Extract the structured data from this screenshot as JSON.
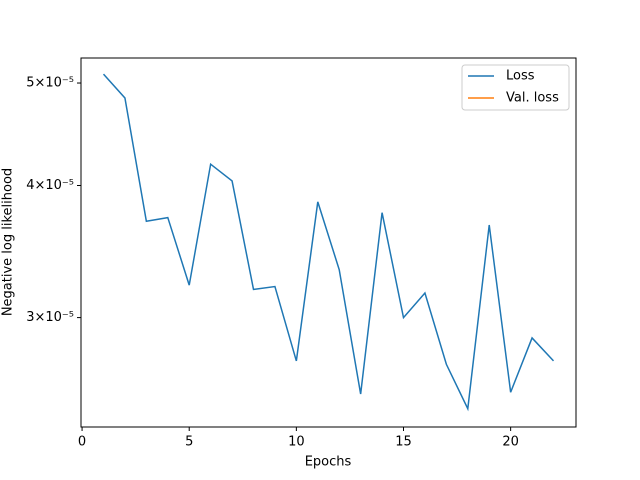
{
  "chart_data": {
    "type": "line",
    "x_label": "Epochs",
    "y_label": "Negative log likelihood",
    "x": [
      1,
      2,
      3,
      4,
      5,
      6,
      7,
      8,
      9,
      10,
      11,
      12,
      13,
      14,
      15,
      16,
      17,
      18,
      19,
      20,
      21,
      22
    ],
    "series": [
      {
        "name": "Loss",
        "color": "#1f77b4",
        "values": [
          5.098e-05,
          4.84e-05,
          3.7e-05,
          3.73e-05,
          3.22e-05,
          4.19e-05,
          4.04e-05,
          3.19e-05,
          3.21e-05,
          2.73e-05,
          3.86e-05,
          3.33e-05,
          2.54e-05,
          3.77e-05,
          3e-05,
          3.165e-05,
          2.71e-05,
          2.46e-05,
          3.67e-05,
          2.55e-05,
          2.87e-05,
          2.73e-05
        ]
      },
      {
        "name": "Val. loss",
        "color": "#ff7f0e",
        "values": [
          null,
          null,
          null,
          null,
          null,
          null,
          null,
          null,
          null,
          null,
          null,
          null,
          null,
          null,
          null,
          null,
          null,
          null,
          null,
          null,
          null,
          null
        ]
      }
    ],
    "xlim": [
      -0.05,
      23.05
    ],
    "xticks": [
      0,
      5,
      10,
      15,
      20
    ],
    "ylim": [
      2.364e-05,
      5.28e-05
    ],
    "log_y": true,
    "yticks": [
      {
        "value": 3e-05,
        "label": "3×10⁻⁵"
      },
      {
        "value": 4e-05,
        "label": "4×10⁻⁵"
      },
      {
        "value": 5e-05,
        "label": "5×10⁻⁵"
      }
    ],
    "legend": "upper right"
  }
}
